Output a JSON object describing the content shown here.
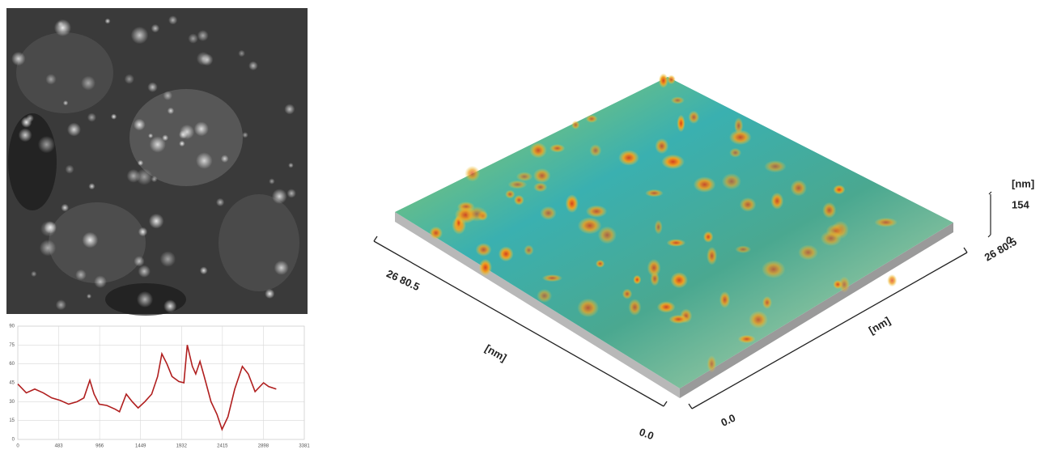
{
  "chart_data": {
    "type": "line",
    "x": [
      0,
      100,
      200,
      300,
      400,
      500,
      600,
      700,
      780,
      850,
      900,
      960,
      1050,
      1150,
      1200,
      1280,
      1350,
      1420,
      1500,
      1580,
      1650,
      1700,
      1760,
      1820,
      1900,
      1960,
      2000,
      2060,
      2100,
      2150,
      2200,
      2280,
      2350,
      2410,
      2480,
      2560,
      2650,
      2720,
      2800,
      2900,
      2960,
      3050
    ],
    "values": [
      44,
      37,
      40,
      37,
      33,
      31,
      28,
      30,
      33,
      47,
      36,
      28,
      27,
      24,
      22,
      36,
      30,
      25,
      30,
      36,
      50,
      68,
      60,
      50,
      46,
      45,
      75,
      58,
      52,
      62,
      50,
      30,
      20,
      8,
      18,
      40,
      58,
      52,
      38,
      45,
      42,
      40
    ],
    "color": "#b01e1e",
    "xlim": [
      0,
      3381
    ],
    "xticks": [
      0,
      483,
      966,
      1449,
      1932,
      2415,
      2898,
      3381
    ],
    "ylim": [
      0,
      90
    ],
    "yticks": [
      0,
      15,
      30,
      45,
      60,
      75,
      90
    ],
    "grid": true
  },
  "surface": {
    "x_max": "26 80.5",
    "x_unit": "[nm]",
    "x_min": "0.0",
    "y_max": "26 80.5",
    "y_unit": "[nm]",
    "y_min": "0.0",
    "z_unit": "[nm]",
    "z_max": "154",
    "z_min": "0"
  }
}
